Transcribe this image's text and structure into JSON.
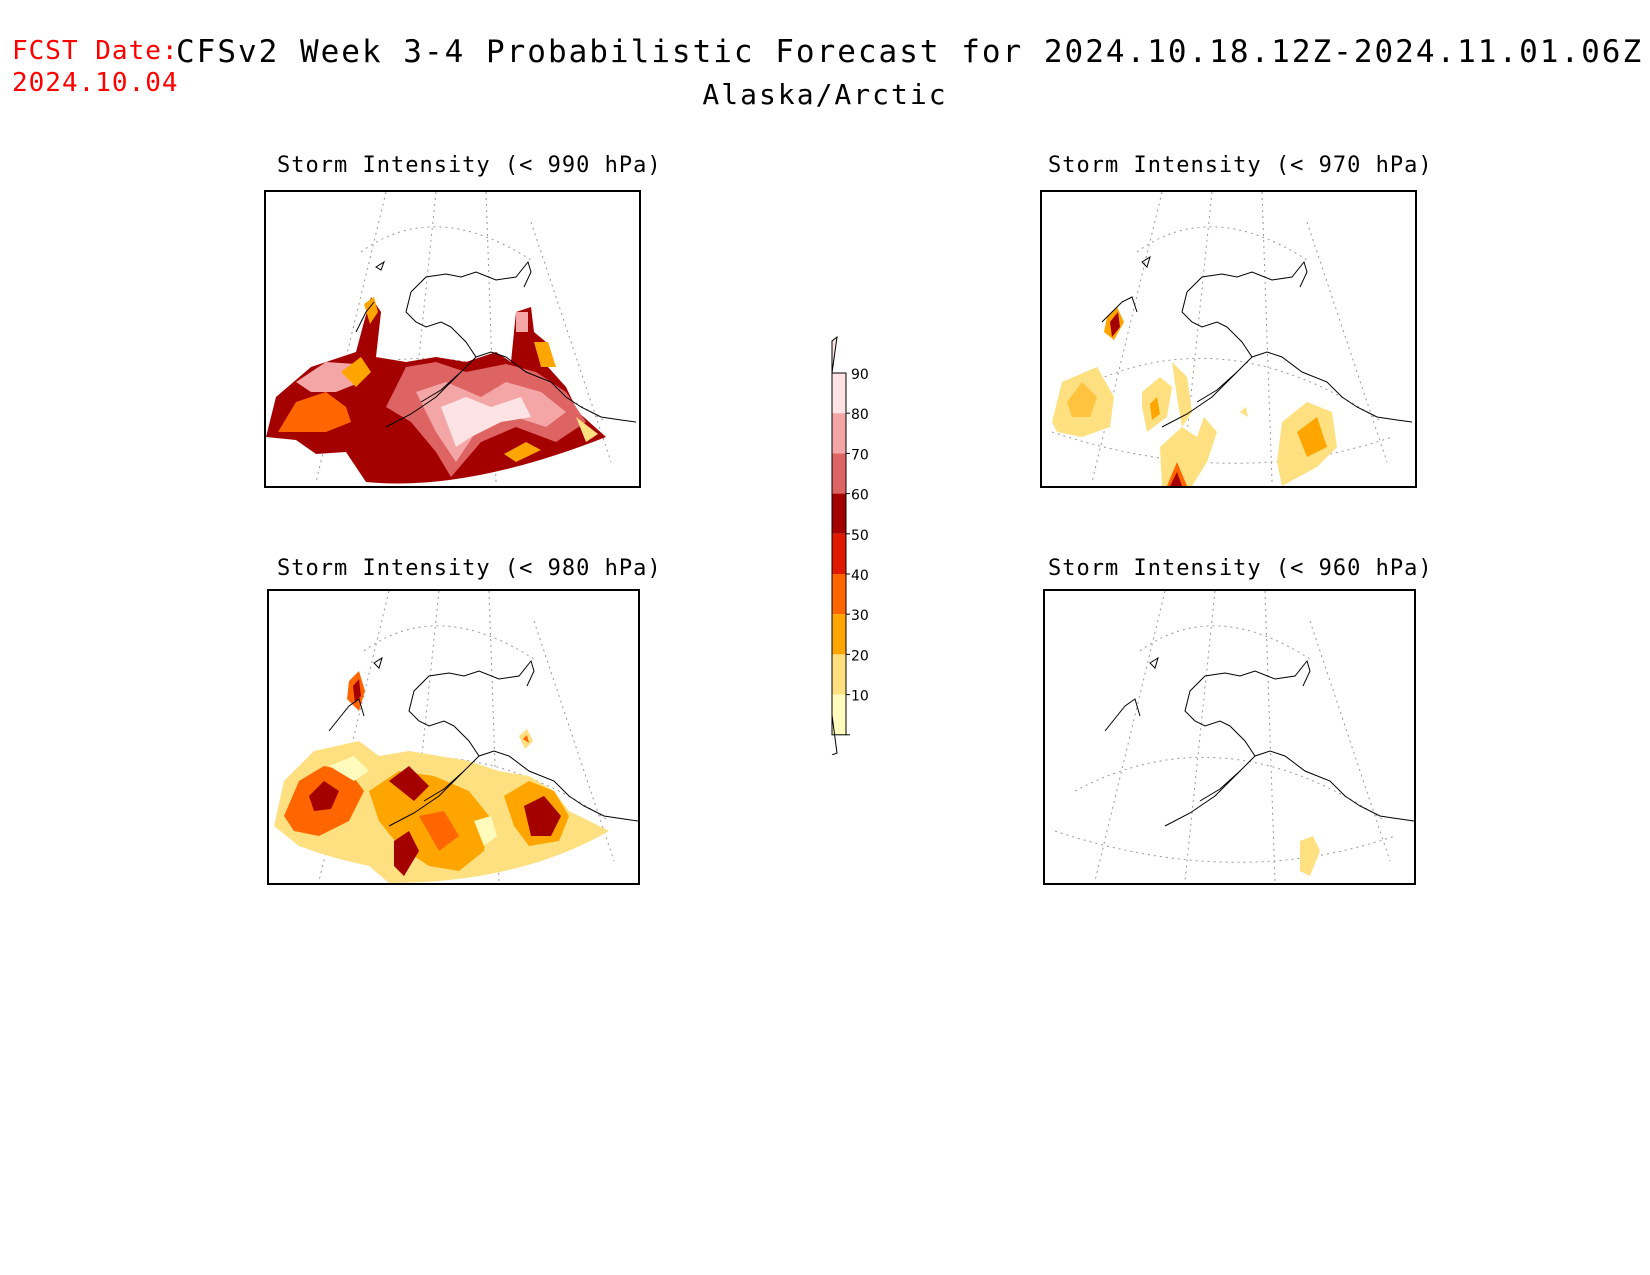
{
  "header": {
    "fcst_label": "FCST Date:",
    "fcst_date": "2024.10.04",
    "title": "CFSv2 Week 3-4 Probabilistic Forecast for 2024.10.18.12Z-2024.11.01.06Z",
    "region": "Alaska/Arctic"
  },
  "panels": [
    {
      "title": "Storm Intensity (< 990 hPa)"
    },
    {
      "title": "Storm Intensity (< 970 hPa)"
    },
    {
      "title": "Storm Intensity (< 980 hPa)"
    },
    {
      "title": "Storm Intensity (< 960 hPa)"
    }
  ],
  "colorbar": {
    "levels": [
      "90",
      "80",
      "70",
      "60",
      "50",
      "40",
      "30",
      "20",
      "10"
    ],
    "colors": [
      "#fde3e3",
      "#f4a6a6",
      "#de6464",
      "#a50000",
      "#e01a00",
      "#ff6600",
      "#ffa500",
      "#ffe080",
      "#fffbbd"
    ]
  },
  "colors": {
    "fcst": "#ff0000",
    "coast": "#000000",
    "grid": "#888888"
  }
}
